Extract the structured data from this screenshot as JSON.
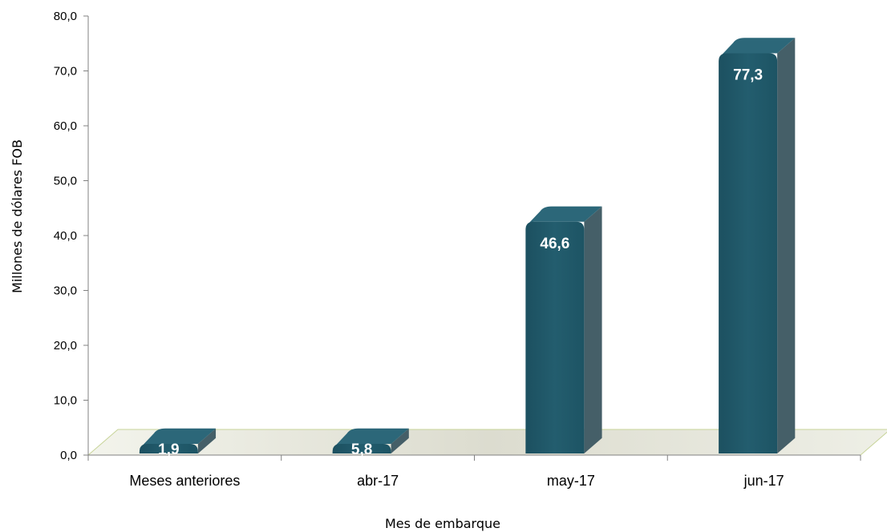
{
  "chart_data": {
    "type": "bar",
    "categories": [
      "Meses anteriores",
      "abr-17",
      "may-17",
      "jun-17"
    ],
    "values": [
      1.9,
      5.8,
      46.6,
      77.3
    ],
    "data_labels": [
      "1,9",
      "5,8",
      "46,6",
      "77,3"
    ],
    "title": "",
    "xlabel": "Mes de embarque",
    "ylabel": "Millones de dólares FOB",
    "ylim": [
      0,
      80
    ],
    "yticks": [
      0,
      10,
      20,
      30,
      40,
      50,
      60,
      70,
      80
    ],
    "ytick_labels": [
      "0,0",
      "10,0",
      "20,0",
      "30,0",
      "40,0",
      "50,0",
      "60,0",
      "70,0",
      "80,0"
    ],
    "grid": false,
    "legend": "none",
    "style": "3d-column",
    "colors": {
      "bar_front": "#215968",
      "bar_side": "#455f68",
      "bar_top": "#2c6779",
      "floor": "#ebece1",
      "floor_edge": "#c8d49a"
    }
  }
}
